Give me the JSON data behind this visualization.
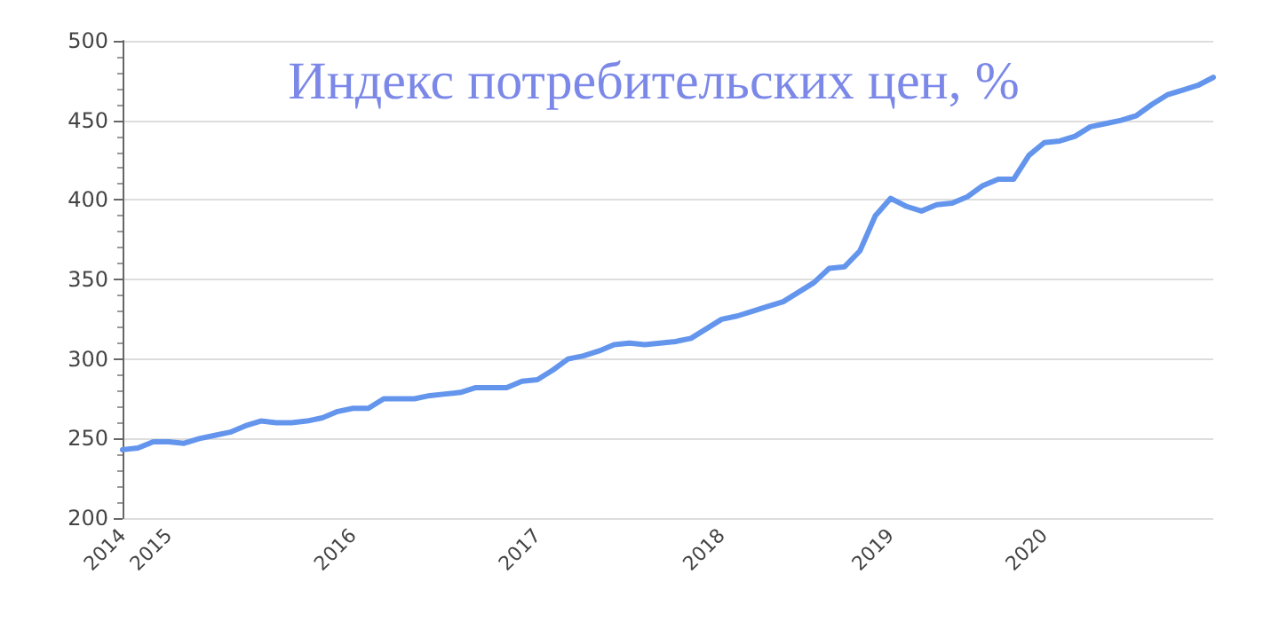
{
  "chart_data": {
    "type": "line",
    "title": "Индекс потребительских цен, %",
    "categories": [
      "2014",
      null,
      null,
      "2015",
      null,
      null,
      null,
      null,
      null,
      null,
      null,
      null,
      null,
      null,
      null,
      "2016",
      null,
      null,
      null,
      null,
      null,
      null,
      null,
      null,
      null,
      null,
      null,
      "2017",
      null,
      null,
      null,
      null,
      null,
      null,
      null,
      null,
      null,
      null,
      null,
      "2018",
      null,
      null,
      null,
      null,
      null,
      null,
      null,
      null,
      null,
      null,
      "2019",
      null,
      null,
      null,
      null,
      null,
      null,
      null,
      null,
      null,
      "2020",
      null,
      null,
      null,
      null,
      null,
      null,
      null,
      null,
      null,
      null,
      null
    ],
    "series": [
      {
        "color": "#6495ed",
        "values": [
          243,
          244,
          248,
          248,
          247,
          250,
          252,
          254,
          258,
          261,
          260,
          260,
          261,
          263,
          267,
          269,
          269,
          275,
          275,
          275,
          277,
          278,
          279,
          282,
          282,
          282,
          286,
          287,
          293,
          300,
          302,
          305,
          309,
          310,
          309,
          310,
          311,
          313,
          319,
          325,
          327,
          330,
          333,
          336,
          342,
          348,
          357,
          358,
          368,
          390,
          401,
          396,
          393,
          397,
          398,
          402,
          409,
          413,
          413,
          428,
          436,
          437,
          440,
          446,
          448,
          450,
          453,
          460,
          466,
          469,
          472,
          477
        ]
      }
    ],
    "ylim": [
      200,
      500
    ],
    "yticks": [
      200,
      250,
      300,
      350,
      400,
      450,
      500
    ],
    "grid": "y",
    "marker": "none",
    "line_style": "solid"
  }
}
